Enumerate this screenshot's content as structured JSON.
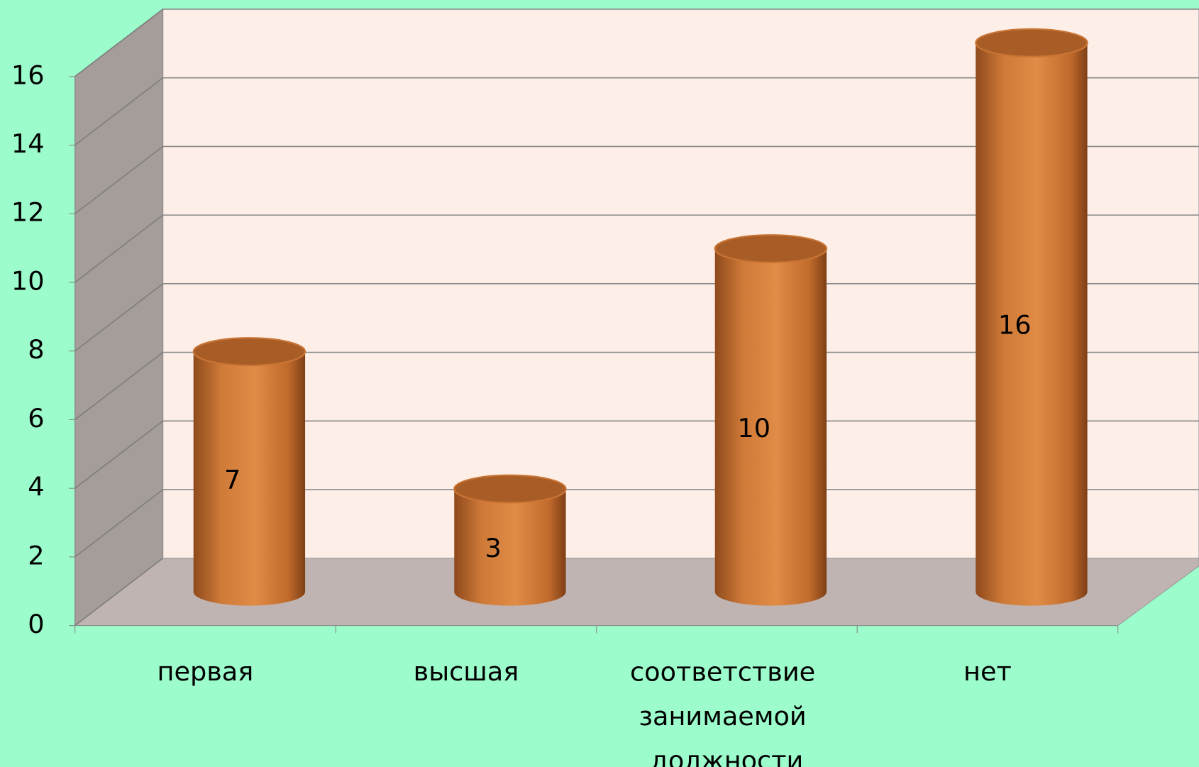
{
  "chart_data": {
    "type": "bar3d",
    "categories": [
      "первая",
      "высшая",
      "соответствие занимаемой должности",
      "нет"
    ],
    "values": [
      7,
      3,
      10,
      16
    ],
    "color": "#d9843e",
    "ylim": [
      0,
      16
    ],
    "yticks": [
      0,
      2,
      4,
      6,
      8,
      10,
      12,
      14,
      16
    ],
    "grid": true
  }
}
